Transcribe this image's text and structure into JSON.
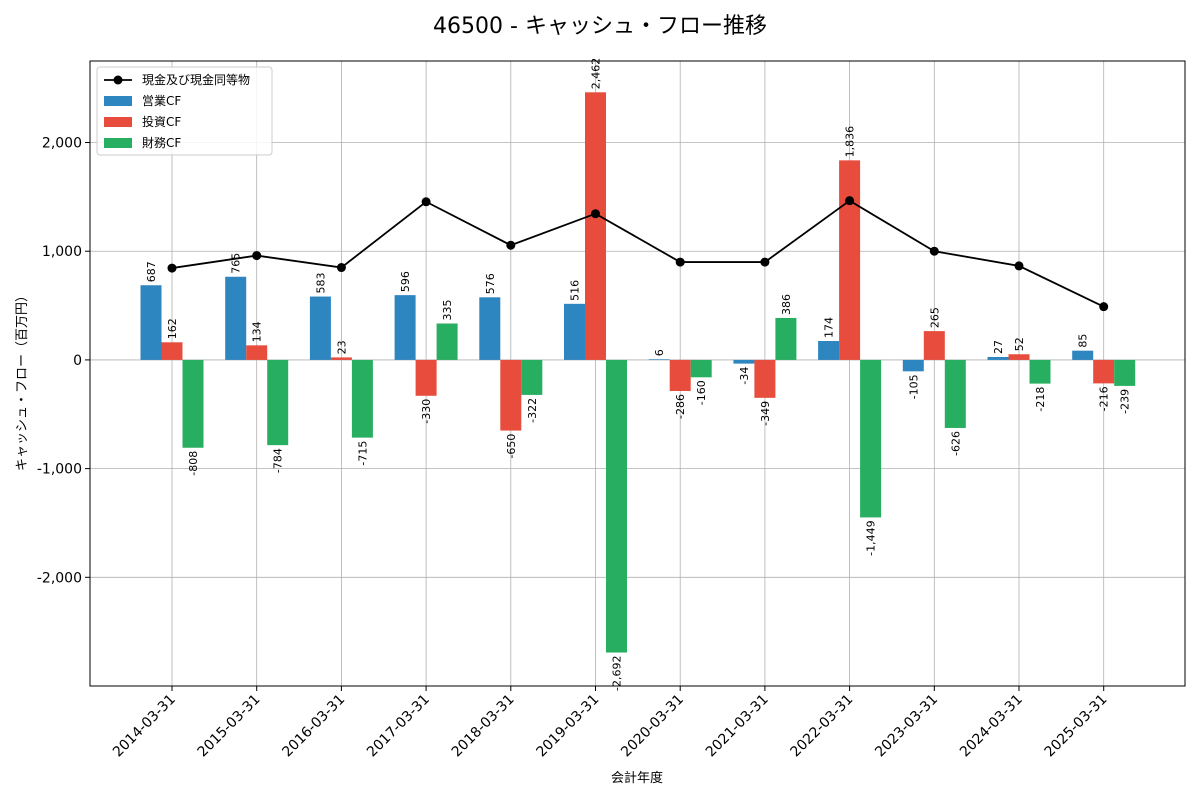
{
  "chart_data": {
    "type": "bar",
    "title": "46500 - キャッシュ・フロー推移",
    "xlabel": "会計年度",
    "ylabel": "キャッシュ・フロー（百万円）",
    "categories": [
      "2014-03-31",
      "2015-03-31",
      "2016-03-31",
      "2017-03-31",
      "2018-03-31",
      "2019-03-31",
      "2020-03-31",
      "2021-03-31",
      "2022-03-31",
      "2023-03-31",
      "2024-03-31",
      "2025-03-31"
    ],
    "series": [
      {
        "name": "営業CF",
        "type": "bar",
        "color": "#2e86c1",
        "values": [
          687,
          765,
          583,
          596,
          576,
          516,
          6,
          -34,
          174,
          -105,
          27,
          85
        ]
      },
      {
        "name": "投資CF",
        "type": "bar",
        "color": "#e74c3c",
        "values": [
          162,
          134,
          23,
          -330,
          -650,
          2462,
          -286,
          -349,
          1836,
          265,
          52,
          -216
        ]
      },
      {
        "name": "財務CF",
        "type": "bar",
        "color": "#27ae60",
        "values": [
          -808,
          -784,
          -715,
          335,
          -322,
          -2692,
          -160,
          386,
          -1449,
          -626,
          -218,
          -239
        ]
      },
      {
        "name": "現金及び現金同等物",
        "type": "line",
        "color": "#000000",
        "values": [
          845,
          960,
          850,
          1455,
          1055,
          1345,
          900,
          900,
          1465,
          1000,
          865,
          490
        ]
      }
    ],
    "ylim": [
      -3000,
      2750
    ],
    "yticks": [
      -2000,
      -1000,
      0,
      1000,
      2000
    ],
    "ytick_labels": [
      "-2,000",
      "-1,000",
      "0",
      "1,000",
      "2,000"
    ],
    "grid": true,
    "legend_position": "top-left"
  }
}
